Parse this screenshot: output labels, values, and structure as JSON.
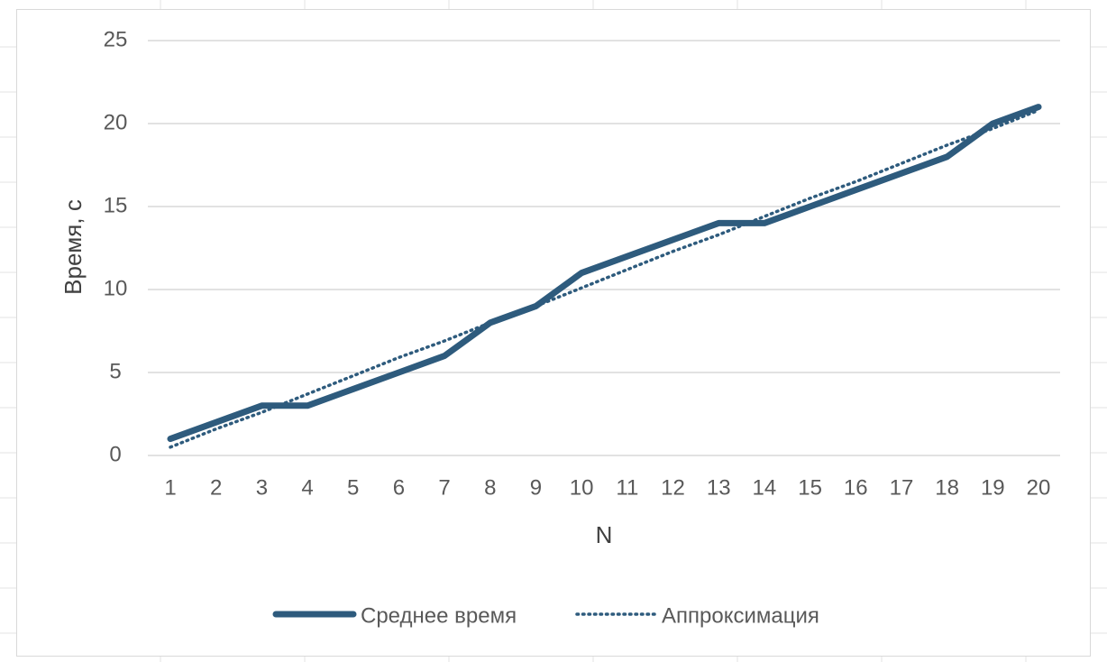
{
  "chart_data": {
    "type": "line",
    "title": "",
    "xlabel": "N",
    "ylabel": "Время, с",
    "categories": [
      "1",
      "2",
      "3",
      "4",
      "5",
      "6",
      "7",
      "8",
      "9",
      "10",
      "11",
      "12",
      "13",
      "14",
      "15",
      "16",
      "17",
      "18",
      "19",
      "20"
    ],
    "ylim": [
      0,
      25
    ],
    "yticks": [
      "0",
      "5",
      "10",
      "15",
      "20",
      "25"
    ],
    "grid": true,
    "legend_position": "bottom",
    "series": [
      {
        "name": "Среднее время",
        "style": "solid",
        "color": "#2e5b7d",
        "values": [
          1,
          2,
          3,
          3,
          4,
          5,
          6,
          8,
          9,
          11,
          12,
          13,
          14,
          14,
          15,
          16,
          17,
          18,
          20,
          21
        ]
      },
      {
        "name": "Аппроксимация",
        "style": "dotted",
        "color": "#2e5b7d",
        "values": [
          0.5,
          1.6,
          2.6,
          3.7,
          4.8,
          5.9,
          6.9,
          8.0,
          9.0,
          10.1,
          11.2,
          12.3,
          13.3,
          14.4,
          15.5,
          16.5,
          17.6,
          18.7,
          19.7,
          20.8
        ]
      }
    ]
  }
}
